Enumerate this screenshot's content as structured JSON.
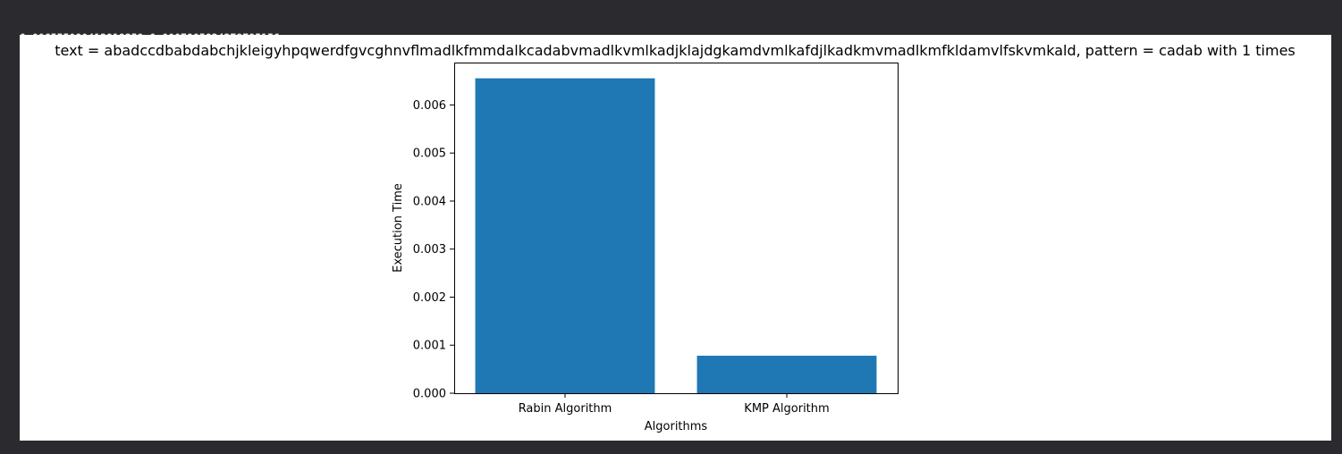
{
  "console": {
    "output_line": "0.006555080413818359 0.0007805824279785156"
  },
  "chart_data": {
    "type": "bar",
    "title": "text = abadccdbabdabchjkleigyhpqwerdfgvcghnvflmadlkfmmdalkcadabvmadlkvmlkadjklajdgkamdvmlkafdjlkadkmvmadlkmfkldamvlfskvmkald, pattern = cadab  with 1 times",
    "categories": [
      "Rabin Algorithm",
      "KMP Algorithm"
    ],
    "values": [
      0.006555080413818359,
      0.0007805824279785156
    ],
    "xlabel": "Algorithms",
    "ylabel": "Execution Time",
    "ylim": [
      0,
      0.006883
    ],
    "yticks": [
      0.0,
      0.001,
      0.002,
      0.003,
      0.004,
      0.005,
      0.006
    ],
    "ytick_labels": [
      "0.000",
      "0.001",
      "0.002",
      "0.003",
      "0.004",
      "0.005",
      "0.006"
    ],
    "bar_color": "#1f77b4",
    "grid": false,
    "legend": false
  }
}
